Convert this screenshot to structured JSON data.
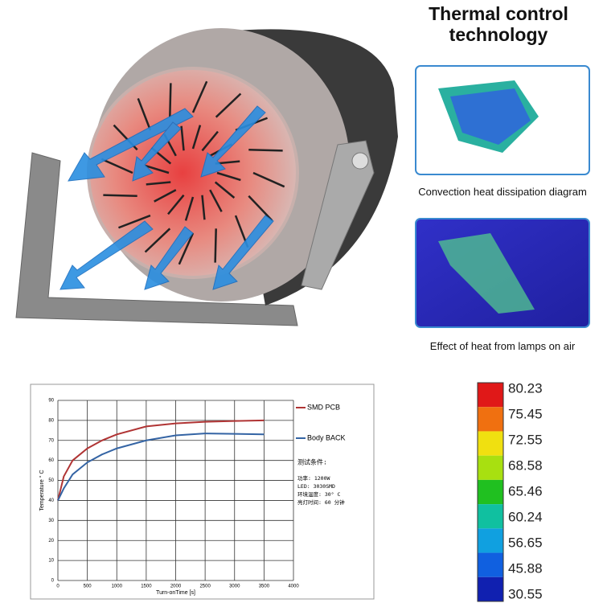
{
  "header": {
    "title": "Thermal control technology"
  },
  "captions": [
    "Convection heat dissipation diagram",
    "Effect of heat from lamps on air"
  ],
  "color_scale": {
    "labels": [
      "80.23",
      "75.45",
      "72.55",
      "68.58",
      "65.46",
      "60.24",
      "56.65",
      "45.88",
      "30.55"
    ],
    "colors": [
      "#e01818",
      "#f07010",
      "#f0e010",
      "#a8e010",
      "#20c020",
      "#10c0a0",
      "#10a0e0",
      "#1060e0",
      "#1020b0"
    ]
  },
  "chart_data": {
    "type": "line",
    "xlabel": "Turn-onTime [s]",
    "ylabel": "Temperature ° C",
    "x": [
      0,
      100,
      250,
      500,
      750,
      1000,
      1500,
      2000,
      2500,
      3000,
      3500
    ],
    "series": [
      {
        "name": "SMD PCB",
        "color": "#b03434",
        "values": [
          40,
          52,
          60,
          66,
          70,
          73,
          77,
          78.5,
          79.3,
          79.7,
          80
        ]
      },
      {
        "name": "Body BACK",
        "color": "#3464a4",
        "values": [
          40,
          46,
          53,
          59,
          63,
          66,
          70,
          72.5,
          73.5,
          73.3,
          73
        ]
      }
    ],
    "xlim": [
      0,
      4000
    ],
    "ylim": [
      0,
      90
    ],
    "xticks": [
      0,
      500,
      1000,
      1500,
      2000,
      2500,
      3000,
      3500,
      4000
    ],
    "yticks": [
      0,
      10,
      20,
      30,
      40,
      50,
      60,
      70,
      80,
      90
    ],
    "grid": true,
    "notes": [
      "测试条件:",
      "功率: 1200W",
      "LED: 3030SMD",
      "环境温度: 30° C",
      "亮灯时间: 60 分钟"
    ]
  }
}
